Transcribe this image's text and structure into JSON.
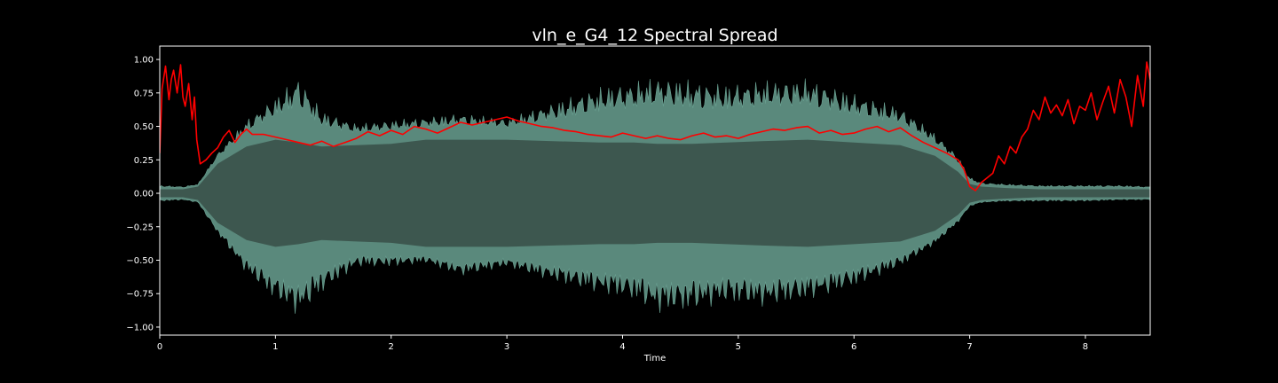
{
  "chart_data": {
    "type": "line",
    "title": "vln_e_G4_12 Spectral Spread",
    "xlabel": "Time",
    "ylabel": "",
    "xlim": [
      0,
      8.56
    ],
    "ylim": [
      -1.06,
      1.1
    ],
    "x_ticks": [
      0,
      1,
      2,
      3,
      4,
      5,
      6,
      7,
      8
    ],
    "x_tick_labels": [
      "0",
      "1",
      "2",
      "3",
      "4",
      "5",
      "6",
      "7",
      "8"
    ],
    "y_ticks": [
      1.0,
      0.75,
      0.5,
      0.25,
      0.0,
      -0.25,
      -0.5,
      -0.75,
      -1.0
    ],
    "y_tick_labels": [
      "1.00",
      "0.75",
      "0.50",
      "0.25",
      "0.00",
      "−0.25",
      "−0.50",
      "−0.75",
      "−1.00"
    ],
    "grid": false,
    "background": "#000000",
    "axes_color": "#ffffff",
    "waveform": {
      "color": "#6aa192",
      "fill_color": "#3d574f",
      "envelope_x": [
        0,
        0.2,
        0.33,
        0.5,
        0.75,
        1.0,
        1.2,
        1.4,
        1.7,
        2.0,
        2.3,
        2.6,
        3.0,
        3.4,
        3.8,
        4.1,
        4.3,
        4.6,
        4.9,
        5.2,
        5.6,
        6.0,
        6.4,
        6.7,
        6.9,
        7.0,
        7.1,
        7.3,
        7.6,
        8.0,
        8.3,
        8.56
      ],
      "envelope_upper": [
        0.06,
        0.05,
        0.07,
        0.3,
        0.55,
        0.72,
        0.88,
        0.62,
        0.52,
        0.55,
        0.57,
        0.6,
        0.56,
        0.68,
        0.8,
        0.84,
        0.88,
        0.85,
        0.82,
        0.85,
        0.86,
        0.75,
        0.65,
        0.45,
        0.28,
        0.12,
        0.08,
        0.07,
        0.06,
        0.06,
        0.06,
        0.05
      ],
      "envelope_lower": [
        -0.06,
        -0.05,
        -0.07,
        -0.3,
        -0.6,
        -0.8,
        -0.92,
        -0.75,
        -0.55,
        -0.55,
        -0.52,
        -0.62,
        -0.55,
        -0.66,
        -0.75,
        -0.8,
        -0.9,
        -0.88,
        -0.82,
        -0.85,
        -0.8,
        -0.7,
        -0.55,
        -0.38,
        -0.22,
        -0.1,
        -0.07,
        -0.06,
        -0.06,
        -0.06,
        -0.05,
        -0.05
      ],
      "core_upper": [
        0.03,
        0.03,
        0.05,
        0.22,
        0.35,
        0.4,
        0.38,
        0.35,
        0.36,
        0.37,
        0.4,
        0.4,
        0.4,
        0.39,
        0.38,
        0.38,
        0.37,
        0.37,
        0.38,
        0.39,
        0.4,
        0.38,
        0.36,
        0.28,
        0.16,
        0.07,
        0.05,
        0.04,
        0.03,
        0.03,
        0.03,
        0.03
      ],
      "core_lower": [
        -0.03,
        -0.03,
        -0.05,
        -0.22,
        -0.35,
        -0.4,
        -0.38,
        -0.35,
        -0.36,
        -0.37,
        -0.4,
        -0.4,
        -0.4,
        -0.39,
        -0.38,
        -0.38,
        -0.37,
        -0.37,
        -0.38,
        -0.39,
        -0.4,
        -0.38,
        -0.36,
        -0.28,
        -0.16,
        -0.07,
        -0.05,
        -0.04,
        -0.03,
        -0.03,
        -0.03,
        -0.03
      ]
    },
    "series": [
      {
        "color": "#ff0000",
        "x": [
          0.0,
          0.02,
          0.05,
          0.08,
          0.1,
          0.12,
          0.15,
          0.18,
          0.2,
          0.22,
          0.25,
          0.28,
          0.3,
          0.32,
          0.35,
          0.4,
          0.45,
          0.5,
          0.55,
          0.6,
          0.65,
          0.7,
          0.75,
          0.8,
          0.9,
          1.0,
          1.1,
          1.2,
          1.3,
          1.4,
          1.5,
          1.6,
          1.7,
          1.8,
          1.9,
          2.0,
          2.1,
          2.2,
          2.3,
          2.4,
          2.5,
          2.6,
          2.7,
          2.8,
          2.9,
          3.0,
          3.1,
          3.2,
          3.3,
          3.4,
          3.5,
          3.6,
          3.7,
          3.8,
          3.9,
          4.0,
          4.1,
          4.2,
          4.3,
          4.4,
          4.5,
          4.6,
          4.7,
          4.8,
          4.9,
          5.0,
          5.1,
          5.2,
          5.3,
          5.4,
          5.5,
          5.6,
          5.7,
          5.8,
          5.9,
          6.0,
          6.1,
          6.2,
          6.3,
          6.4,
          6.5,
          6.6,
          6.7,
          6.8,
          6.9,
          6.95,
          7.0,
          7.05,
          7.1,
          7.2,
          7.25,
          7.3,
          7.35,
          7.4,
          7.45,
          7.5,
          7.55,
          7.6,
          7.65,
          7.7,
          7.75,
          7.8,
          7.85,
          7.9,
          7.95,
          8.0,
          8.05,
          8.1,
          8.15,
          8.2,
          8.25,
          8.3,
          8.35,
          8.4,
          8.45,
          8.5,
          8.53,
          8.56
        ],
        "values": [
          0.3,
          0.78,
          0.95,
          0.7,
          0.85,
          0.92,
          0.75,
          0.96,
          0.72,
          0.65,
          0.82,
          0.55,
          0.72,
          0.4,
          0.22,
          0.25,
          0.3,
          0.34,
          0.42,
          0.47,
          0.38,
          0.44,
          0.48,
          0.44,
          0.44,
          0.42,
          0.4,
          0.38,
          0.36,
          0.39,
          0.35,
          0.38,
          0.41,
          0.46,
          0.43,
          0.47,
          0.44,
          0.5,
          0.48,
          0.45,
          0.49,
          0.53,
          0.51,
          0.53,
          0.55,
          0.57,
          0.54,
          0.52,
          0.5,
          0.49,
          0.47,
          0.46,
          0.44,
          0.43,
          0.42,
          0.45,
          0.43,
          0.41,
          0.43,
          0.41,
          0.4,
          0.43,
          0.45,
          0.42,
          0.43,
          0.41,
          0.44,
          0.46,
          0.48,
          0.47,
          0.49,
          0.5,
          0.45,
          0.47,
          0.44,
          0.45,
          0.48,
          0.5,
          0.46,
          0.49,
          0.43,
          0.38,
          0.34,
          0.3,
          0.25,
          0.18,
          0.05,
          0.02,
          0.08,
          0.15,
          0.28,
          0.22,
          0.35,
          0.3,
          0.42,
          0.48,
          0.62,
          0.55,
          0.72,
          0.6,
          0.66,
          0.58,
          0.7,
          0.52,
          0.65,
          0.62,
          0.75,
          0.55,
          0.68,
          0.8,
          0.6,
          0.85,
          0.72,
          0.5,
          0.88,
          0.65,
          0.98,
          0.85
        ]
      }
    ]
  }
}
